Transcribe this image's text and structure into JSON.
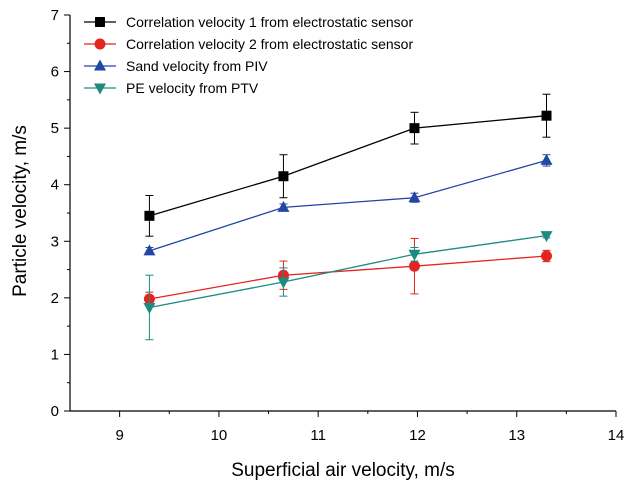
{
  "chart_data": {
    "type": "line",
    "xlabel": "Superficial air velocity, m/s",
    "ylabel": "Particle velocity, m/s",
    "xlim": [
      8.5,
      14
    ],
    "ylim": [
      0,
      7
    ],
    "xticks": [
      9,
      10,
      11,
      12,
      13,
      14
    ],
    "yticks": [
      0,
      1,
      2,
      3,
      4,
      5,
      6,
      7
    ],
    "grid": false,
    "legend_position": "top-left",
    "series": [
      {
        "name": "Correlation velocity 1 from electrostatic sensor",
        "color": "#000000",
        "marker": "square",
        "x": [
          9.3,
          10.65,
          11.97,
          13.3
        ],
        "y": [
          3.45,
          4.15,
          5.0,
          5.22
        ],
        "err": [
          0.36,
          0.38,
          0.28,
          0.38
        ]
      },
      {
        "name": "Correlation velocity 2 from electrostatic sensor",
        "color": "#e3251f",
        "marker": "circle",
        "x": [
          9.3,
          10.65,
          11.97,
          13.3
        ],
        "y": [
          1.98,
          2.4,
          2.56,
          2.74
        ],
        "err": [
          0.12,
          0.25,
          0.49,
          0.1
        ]
      },
      {
        "name": "Sand velocity from PIV",
        "color": "#2345a3",
        "marker": "triangle-up",
        "x": [
          9.3,
          10.65,
          11.97,
          13.3
        ],
        "y": [
          2.83,
          3.6,
          3.77,
          4.43
        ],
        "err": [
          0.06,
          0.06,
          0.08,
          0.1
        ]
      },
      {
        "name": "PE velocity from PTV",
        "color": "#1e8a80",
        "marker": "triangle-down",
        "x": [
          9.3,
          10.65,
          11.97,
          13.3
        ],
        "y": [
          1.83,
          2.28,
          2.77,
          3.1
        ],
        "err": [
          0.57,
          0.25,
          0.12,
          0.04
        ]
      }
    ]
  }
}
